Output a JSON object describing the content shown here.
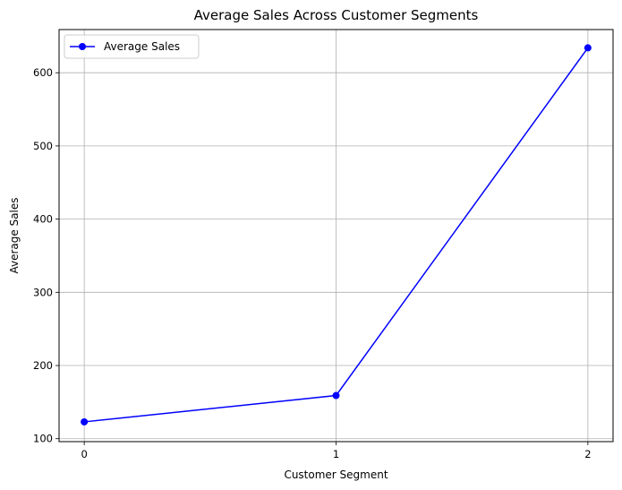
{
  "chart_data": {
    "type": "line",
    "title": "Average Sales Across Customer Segments",
    "xlabel": "Customer Segment",
    "ylabel": "Average Sales",
    "x": [
      0,
      1,
      2
    ],
    "x_ticks": [
      "0",
      "1",
      "2"
    ],
    "y_ticks": [
      100,
      200,
      300,
      400,
      500,
      600
    ],
    "xlim": [
      -0.1,
      2.1
    ],
    "ylim": [
      96,
      659
    ],
    "grid": true,
    "legend_position": "top-left",
    "series": [
      {
        "name": "Average Sales",
        "values": [
          123,
          159,
          634
        ],
        "color": "#0000ff",
        "marker": "circle"
      }
    ]
  }
}
